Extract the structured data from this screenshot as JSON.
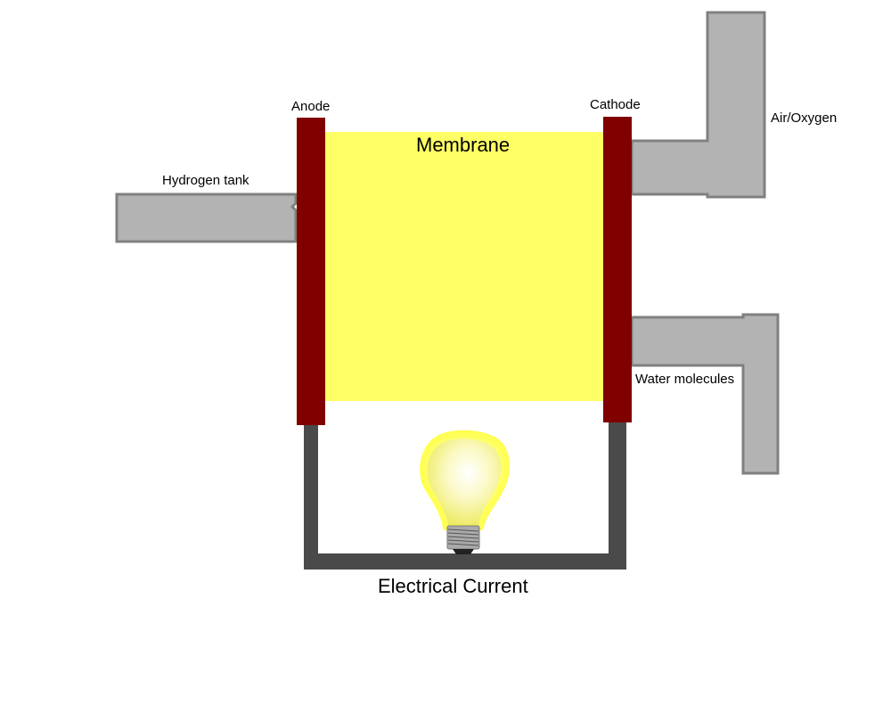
{
  "labels": {
    "anode": "Anode",
    "cathode": "Cathode",
    "membrane": "Membrane",
    "hydrogen_tank": "Hydrogen tank",
    "air_oxygen": "Air/Oxygen",
    "water_molecules": "Water molecules",
    "electrical_current": "Electrical Current"
  },
  "colors": {
    "membrane": "#ffff66",
    "electrode": "#800000",
    "pipe_fill": "#b3b3b3",
    "pipe_stroke": "#808080",
    "wire": "#4a4a4a",
    "bulb_glow": "#ffff66",
    "bulb_glass": "#f7f590",
    "bulb_base": "#aaaaaa"
  },
  "icons": {
    "bulb": "light-bulb-icon"
  }
}
